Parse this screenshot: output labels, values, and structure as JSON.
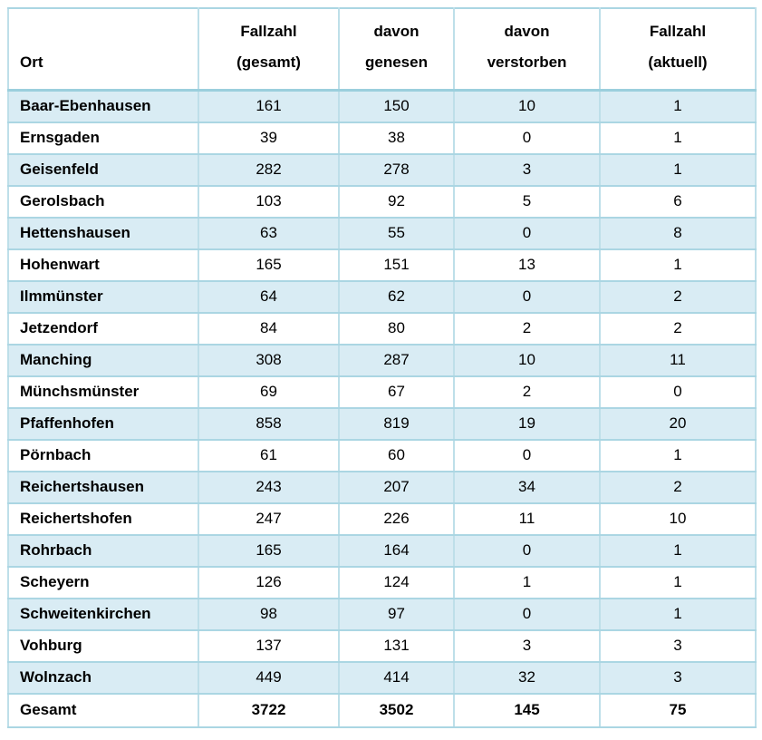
{
  "table": {
    "columns": [
      {
        "line1": "",
        "line2": "Ort"
      },
      {
        "line1": "Fallzahl",
        "line2": "(gesamt)"
      },
      {
        "line1": "davon",
        "line2": "genesen"
      },
      {
        "line1": "davon",
        "line2": "verstorben"
      },
      {
        "line1": "Fallzahl",
        "line2": "(aktuell)"
      }
    ],
    "rows": [
      {
        "ort": "Baar-Ebenhausen",
        "gesamt": "161",
        "genesen": "150",
        "verstorben": "10",
        "aktuell": "1"
      },
      {
        "ort": "Ernsgaden",
        "gesamt": "39",
        "genesen": "38",
        "verstorben": "0",
        "aktuell": "1"
      },
      {
        "ort": "Geisenfeld",
        "gesamt": "282",
        "genesen": "278",
        "verstorben": "3",
        "aktuell": "1"
      },
      {
        "ort": "Gerolsbach",
        "gesamt": "103",
        "genesen": "92",
        "verstorben": "5",
        "aktuell": "6"
      },
      {
        "ort": "Hettenshausen",
        "gesamt": "63",
        "genesen": "55",
        "verstorben": "0",
        "aktuell": "8"
      },
      {
        "ort": "Hohenwart",
        "gesamt": "165",
        "genesen": "151",
        "verstorben": "13",
        "aktuell": "1"
      },
      {
        "ort": "Ilmmünster",
        "gesamt": "64",
        "genesen": "62",
        "verstorben": "0",
        "aktuell": "2"
      },
      {
        "ort": "Jetzendorf",
        "gesamt": "84",
        "genesen": "80",
        "verstorben": "2",
        "aktuell": "2"
      },
      {
        "ort": "Manching",
        "gesamt": "308",
        "genesen": "287",
        "verstorben": "10",
        "aktuell": "11"
      },
      {
        "ort": "Münchsmünster",
        "gesamt": "69",
        "genesen": "67",
        "verstorben": "2",
        "aktuell": "0"
      },
      {
        "ort": "Pfaffenhofen",
        "gesamt": "858",
        "genesen": "819",
        "verstorben": "19",
        "aktuell": "20"
      },
      {
        "ort": "Pörnbach",
        "gesamt": "61",
        "genesen": "60",
        "verstorben": "0",
        "aktuell": "1"
      },
      {
        "ort": "Reichertshausen",
        "gesamt": "243",
        "genesen": "207",
        "verstorben": "34",
        "aktuell": "2"
      },
      {
        "ort": "Reichertshofen",
        "gesamt": "247",
        "genesen": "226",
        "verstorben": "11",
        "aktuell": "10"
      },
      {
        "ort": "Rohrbach",
        "gesamt": "165",
        "genesen": "164",
        "verstorben": "0",
        "aktuell": "1"
      },
      {
        "ort": "Scheyern",
        "gesamt": "126",
        "genesen": "124",
        "verstorben": "1",
        "aktuell": "1"
      },
      {
        "ort": "Schweitenkirchen",
        "gesamt": "98",
        "genesen": "97",
        "verstorben": "0",
        "aktuell": "1"
      },
      {
        "ort": "Vohburg",
        "gesamt": "137",
        "genesen": "131",
        "verstorben": "3",
        "aktuell": "3"
      },
      {
        "ort": "Wolnzach",
        "gesamt": "449",
        "genesen": "414",
        "verstorben": "32",
        "aktuell": "3"
      }
    ],
    "total": {
      "ort": "Gesamt",
      "gesamt": "3722",
      "genesen": "3502",
      "verstorben": "145",
      "aktuell": "75"
    }
  },
  "colors": {
    "row_alt": "#d9ecf4",
    "row_plain": "#ffffff",
    "grid_vertical": "#bedfe9",
    "grid_horizontal": "#abd6e3",
    "header_divider": "#9bcfdd",
    "text": "#000000",
    "background": "#ffffff"
  }
}
